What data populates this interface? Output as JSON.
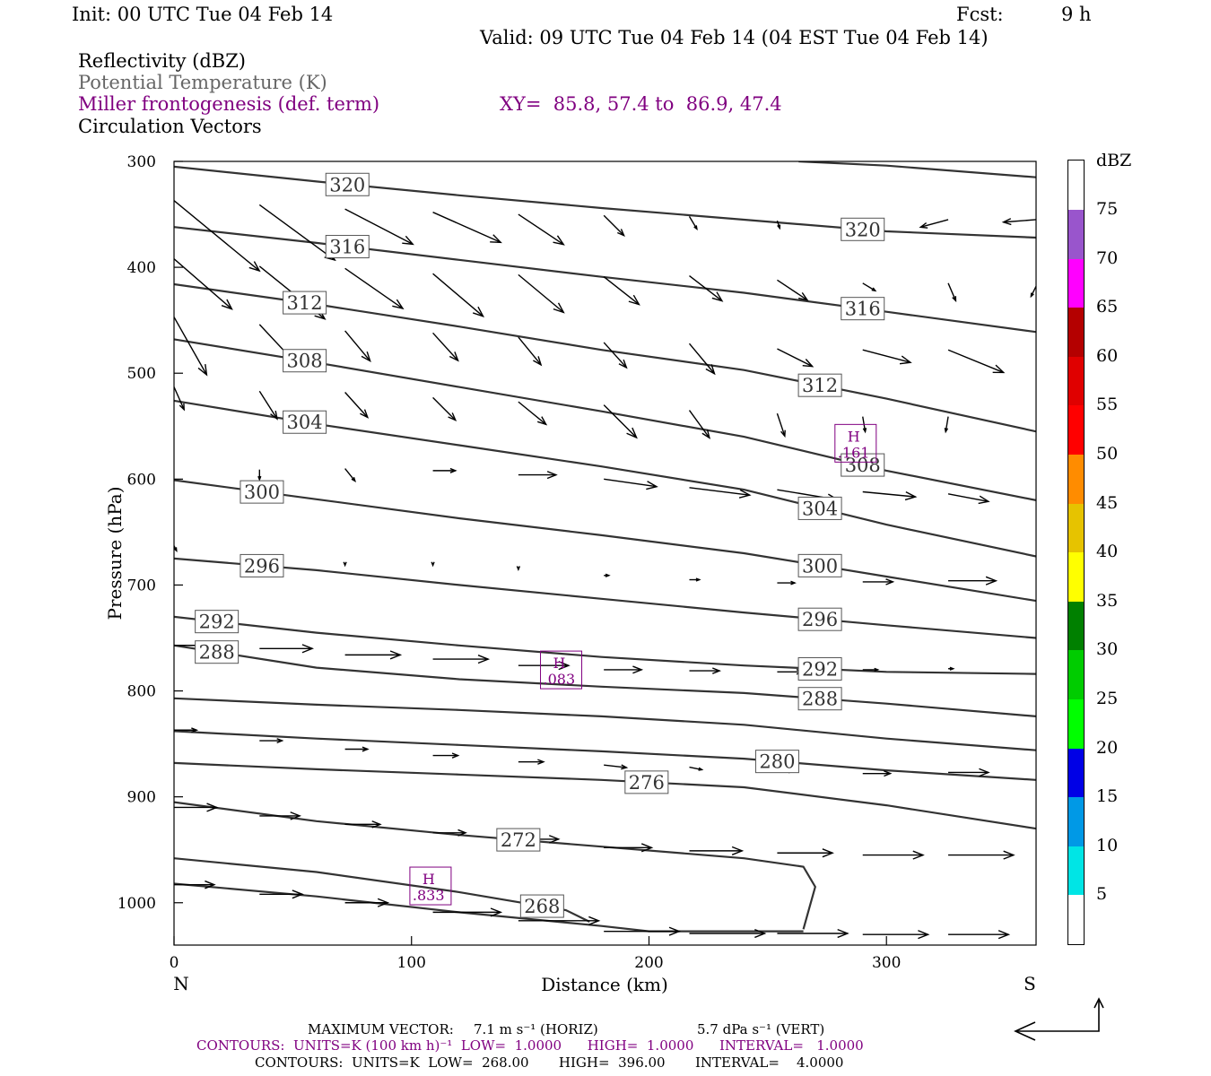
{
  "header": {
    "init": "Init: 00 UTC Tue 04 Feb 14",
    "fcst_label": "Fcst:",
    "fcst_value": "9 h",
    "valid": "Valid: 09 UTC Tue 04 Feb 14 (04 EST Tue 04 Feb 14)"
  },
  "legend": {
    "line1": "Reflectivity (dBZ)",
    "line2": "Potential Temperature (K)",
    "line3": "Miller frontogenesis (def. term)",
    "xy": "XY=  85.8, 57.4 to  86.9, 47.4",
    "line4": "Circulation Vectors"
  },
  "chart_data": {
    "type": "cross-section",
    "xlabel": "Distance (km)",
    "ylabel": "Pressure (hPa)",
    "xlim": [
      0,
      363
    ],
    "ylim_hpa": [
      300,
      1040
    ],
    "x_ticks": [
      0,
      100,
      200,
      300
    ],
    "y_ticks": [
      300,
      400,
      500,
      600,
      700,
      800,
      900,
      1000
    ],
    "x_end_labels": {
      "left": "N",
      "right": "S"
    },
    "theta_contours": [
      {
        "value": 320,
        "label_x": [
          73,
          290
        ],
        "pts": [
          [
            0,
            305
          ],
          [
            60,
            319
          ],
          [
            120,
            332
          ],
          [
            180,
            344
          ],
          [
            240,
            355
          ],
          [
            300,
            366
          ],
          [
            363,
            372
          ]
        ],
        "upper_pts": [
          [
            263,
            300
          ],
          [
            300,
            304
          ],
          [
            363,
            315
          ]
        ]
      },
      {
        "value": 316,
        "label_x": [
          73,
          290
        ],
        "pts": [
          [
            0,
            362
          ],
          [
            60,
            377
          ],
          [
            120,
            393
          ],
          [
            180,
            409
          ],
          [
            240,
            424
          ],
          [
            300,
            442
          ],
          [
            363,
            461
          ]
        ]
      },
      {
        "value": 312,
        "label_x": [
          55,
          272
        ],
        "pts": [
          [
            0,
            416
          ],
          [
            60,
            435
          ],
          [
            120,
            456
          ],
          [
            180,
            478
          ],
          [
            240,
            497
          ],
          [
            300,
            524
          ],
          [
            363,
            555
          ]
        ]
      },
      {
        "value": 308,
        "label_x": [
          55,
          290
        ],
        "pts": [
          [
            0,
            468
          ],
          [
            60,
            490
          ],
          [
            120,
            513
          ],
          [
            180,
            536
          ],
          [
            240,
            560
          ],
          [
            300,
            592
          ],
          [
            363,
            620
          ]
        ]
      },
      {
        "value": 304,
        "label_x": [
          55,
          272
        ],
        "pts": [
          [
            0,
            526
          ],
          [
            60,
            548
          ],
          [
            120,
            568
          ],
          [
            180,
            588
          ],
          [
            240,
            610
          ],
          [
            300,
            643
          ],
          [
            363,
            673
          ]
        ]
      },
      {
        "value": 300,
        "label_x": [
          37,
          272
        ],
        "pts": [
          [
            0,
            601
          ],
          [
            60,
            619
          ],
          [
            120,
            637
          ],
          [
            180,
            653
          ],
          [
            240,
            670
          ],
          [
            300,
            692
          ],
          [
            363,
            715
          ]
        ]
      },
      {
        "value": 296,
        "label_x": [
          37,
          272
        ],
        "pts": [
          [
            0,
            675
          ],
          [
            60,
            686
          ],
          [
            120,
            700
          ],
          [
            180,
            713
          ],
          [
            240,
            726
          ],
          [
            300,
            738
          ],
          [
            363,
            750
          ]
        ]
      },
      {
        "value": 292,
        "label_x": [
          18,
          272
        ],
        "pts": [
          [
            0,
            730
          ],
          [
            60,
            745
          ],
          [
            120,
            757
          ],
          [
            180,
            768
          ],
          [
            240,
            776
          ],
          [
            300,
            782
          ],
          [
            363,
            784
          ]
        ]
      },
      {
        "value": 288,
        "label_x": [
          18,
          272
        ],
        "pts": [
          [
            0,
            757
          ],
          [
            60,
            778
          ],
          [
            120,
            789
          ],
          [
            180,
            796
          ],
          [
            240,
            802
          ],
          [
            300,
            812
          ],
          [
            363,
            824
          ]
        ]
      },
      {
        "value": 284,
        "label_x": [],
        "pts": [
          [
            0,
            807
          ],
          [
            60,
            813
          ],
          [
            120,
            818
          ],
          [
            180,
            824
          ],
          [
            240,
            832
          ],
          [
            300,
            845
          ],
          [
            363,
            856
          ]
        ]
      },
      {
        "value": 280,
        "label_x": [
          254
        ],
        "pts": [
          [
            0,
            838
          ],
          [
            60,
            845
          ],
          [
            120,
            851
          ],
          [
            180,
            857
          ],
          [
            240,
            864
          ],
          [
            300,
            875
          ],
          [
            363,
            884
          ]
        ]
      },
      {
        "value": 276,
        "label_x": [
          199
        ],
        "pts": [
          [
            0,
            868
          ],
          [
            60,
            874
          ],
          [
            120,
            879
          ],
          [
            180,
            884
          ],
          [
            240,
            891
          ],
          [
            300,
            908
          ],
          [
            363,
            930
          ]
        ]
      },
      {
        "value": 272,
        "label_x": [
          145
        ],
        "pts": [
          [
            0,
            905
          ],
          [
            60,
            923
          ],
          [
            120,
            936
          ],
          [
            180,
            947
          ],
          [
            240,
            958
          ],
          [
            265,
            966
          ],
          [
            270,
            985
          ],
          [
            265,
            1025
          ]
        ]
      },
      {
        "value": 268,
        "label_x": [
          155
        ],
        "pts": [
          [
            0,
            958
          ],
          [
            60,
            971
          ],
          [
            120,
            990
          ],
          [
            165,
            1007
          ],
          [
            175,
            1018
          ]
        ]
      },
      {
        "value": 264,
        "label_x": [],
        "pts": [
          [
            0,
            982
          ],
          [
            60,
            994
          ],
          [
            120,
            1009
          ],
          [
            180,
            1022
          ],
          [
            200,
            1027
          ],
          [
            265,
            1027
          ]
        ]
      }
    ],
    "contour_label_values": [
      "320",
      "320",
      "316",
      "316",
      "312",
      "312",
      "308",
      "308",
      "304",
      "304",
      "300",
      "300",
      "296",
      "296",
      "292",
      "292",
      "288",
      "288",
      "280",
      "276",
      "272",
      "268"
    ],
    "frontogenesis_maxima": [
      {
        "label": "H",
        "value": ".161",
        "x": 287,
        "p": 567
      },
      {
        "label": "H",
        "value": ".083",
        "x": 163,
        "p": 781
      },
      {
        "label": "H",
        "value": ".833",
        "x": 108,
        "p": 985
      }
    ],
    "circulation_vectors": [
      {
        "x": 0,
        "p": 337,
        "u": 34,
        "w": 28
      },
      {
        "x": 36,
        "p": 341,
        "u": 30,
        "w": 22
      },
      {
        "x": 72,
        "p": 345,
        "u": 27,
        "w": 14
      },
      {
        "x": 109,
        "p": 348,
        "u": 27,
        "w": 12
      },
      {
        "x": 145,
        "p": 350,
        "u": 18,
        "w": 12
      },
      {
        "x": 181,
        "p": 351,
        "u": 8,
        "w": 8
      },
      {
        "x": 217,
        "p": 352,
        "u": 3,
        "w": 5
      },
      {
        "x": 254,
        "p": 356,
        "u": 1,
        "w": 3
      },
      {
        "x": 290,
        "p": 355,
        "u": -6,
        "w": 3
      },
      {
        "x": 326,
        "p": 355,
        "u": -11,
        "w": 3
      },
      {
        "x": 363,
        "p": 355,
        "u": -13,
        "w": 1
      },
      {
        "x": 0,
        "p": 392,
        "u": 23,
        "w": 20
      },
      {
        "x": 36,
        "p": 399,
        "u": 26,
        "w": 21
      },
      {
        "x": 72,
        "p": 401,
        "u": 23,
        "w": 16
      },
      {
        "x": 109,
        "p": 406,
        "u": 20,
        "w": 17
      },
      {
        "x": 145,
        "p": 407,
        "u": 18,
        "w": 15
      },
      {
        "x": 181,
        "p": 409,
        "u": 14,
        "w": 11
      },
      {
        "x": 217,
        "p": 408,
        "u": 13,
        "w": 10
      },
      {
        "x": 254,
        "p": 412,
        "u": 12,
        "w": 8
      },
      {
        "x": 290,
        "p": 415,
        "u": 5,
        "w": 3
      },
      {
        "x": 326,
        "p": 415,
        "u": 3,
        "w": 7
      },
      {
        "x": 363,
        "p": 418,
        "u": -2,
        "w": 4
      },
      {
        "x": 0,
        "p": 447,
        "u": 13,
        "w": 23
      },
      {
        "x": 36,
        "p": 454,
        "u": 14,
        "w": 15
      },
      {
        "x": 72,
        "p": 460,
        "u": 10,
        "w": 12
      },
      {
        "x": 109,
        "p": 462,
        "u": 10,
        "w": 11
      },
      {
        "x": 145,
        "p": 466,
        "u": 9,
        "w": 11
      },
      {
        "x": 181,
        "p": 471,
        "u": 9,
        "w": 10
      },
      {
        "x": 217,
        "p": 472,
        "u": 10,
        "w": 12
      },
      {
        "x": 254,
        "p": 477,
        "u": 14,
        "w": 7
      },
      {
        "x": 290,
        "p": 478,
        "u": 19,
        "w": 5
      },
      {
        "x": 326,
        "p": 478,
        "u": 22,
        "w": 9
      },
      {
        "x": 363,
        "p": 480,
        "u": 23,
        "w": 5
      },
      {
        "x": 0,
        "p": 513,
        "u": 4,
        "w": 9
      },
      {
        "x": 36,
        "p": 517,
        "u": 7,
        "w": 11
      },
      {
        "x": 72,
        "p": 518,
        "u": 9,
        "w": 10
      },
      {
        "x": 109,
        "p": 523,
        "u": 9,
        "w": 9
      },
      {
        "x": 145,
        "p": 527,
        "u": 11,
        "w": 9
      },
      {
        "x": 181,
        "p": 530,
        "u": 13,
        "w": 13
      },
      {
        "x": 217,
        "p": 535,
        "u": 8,
        "w": 11
      },
      {
        "x": 254,
        "p": 538,
        "u": 3,
        "w": 9
      },
      {
        "x": 290,
        "p": 541,
        "u": 1,
        "w": 6
      },
      {
        "x": 326,
        "p": 541,
        "u": -1,
        "w": 6
      },
      {
        "x": 36,
        "p": 591,
        "u": 0,
        "w": 4
      },
      {
        "x": 72,
        "p": 590,
        "u": 4,
        "w": 5
      },
      {
        "x": 109,
        "p": 592,
        "u": 9,
        "w": 0
      },
      {
        "x": 145,
        "p": 596,
        "u": 15,
        "w": 0
      },
      {
        "x": 181,
        "p": 600,
        "u": 21,
        "w": 3
      },
      {
        "x": 217,
        "p": 608,
        "u": 24,
        "w": 3
      },
      {
        "x": 254,
        "p": 610,
        "u": 24,
        "w": 4
      },
      {
        "x": 290,
        "p": 612,
        "u": 21,
        "w": 2
      },
      {
        "x": 326,
        "p": 614,
        "u": 16,
        "w": 3
      },
      {
        "x": 0,
        "p": 663,
        "u": 1,
        "w": 2
      },
      {
        "x": 36,
        "p": 671,
        "u": 0,
        "w": 2
      },
      {
        "x": 72,
        "p": 679,
        "u": 0,
        "w": 1
      },
      {
        "x": 109,
        "p": 679,
        "u": 0,
        "w": 1
      },
      {
        "x": 145,
        "p": 683,
        "u": 0,
        "w": 1
      },
      {
        "x": 181,
        "p": 691,
        "u": 2,
        "w": 0
      },
      {
        "x": 217,
        "p": 695,
        "u": 4,
        "w": 0
      },
      {
        "x": 254,
        "p": 698,
        "u": 7,
        "w": 0
      },
      {
        "x": 290,
        "p": 697,
        "u": 12,
        "w": 0
      },
      {
        "x": 326,
        "p": 696,
        "u": 19,
        "w": 0
      },
      {
        "x": 0,
        "p": 757,
        "u": 18,
        "w": 0
      },
      {
        "x": 36,
        "p": 760,
        "u": 21,
        "w": 0
      },
      {
        "x": 72,
        "p": 766,
        "u": 22,
        "w": 0
      },
      {
        "x": 109,
        "p": 770,
        "u": 22,
        "w": 0
      },
      {
        "x": 145,
        "p": 776,
        "u": 20,
        "w": 0
      },
      {
        "x": 181,
        "p": 780,
        "u": 15,
        "w": 0
      },
      {
        "x": 217,
        "p": 781,
        "u": 12,
        "w": 0
      },
      {
        "x": 254,
        "p": 782,
        "u": 10,
        "w": 0
      },
      {
        "x": 290,
        "p": 780,
        "u": 6,
        "w": 0
      },
      {
        "x": 326,
        "p": 779,
        "u": 2,
        "w": 0
      },
      {
        "x": 0,
        "p": 837,
        "u": 9,
        "w": 0
      },
      {
        "x": 36,
        "p": 847,
        "u": 9,
        "w": 0
      },
      {
        "x": 72,
        "p": 855,
        "u": 9,
        "w": 0
      },
      {
        "x": 109,
        "p": 861,
        "u": 10,
        "w": 0
      },
      {
        "x": 145,
        "p": 867,
        "u": 10,
        "w": 0
      },
      {
        "x": 181,
        "p": 870,
        "u": 9,
        "w": 1
      },
      {
        "x": 217,
        "p": 872,
        "u": 5,
        "w": 1
      },
      {
        "x": 254,
        "p": 874,
        "u": 6,
        "w": 1
      },
      {
        "x": 290,
        "p": 878,
        "u": 11,
        "w": 0
      },
      {
        "x": 326,
        "p": 877,
        "u": 16,
        "w": 0
      },
      {
        "x": 0,
        "p": 910,
        "u": 17,
        "w": 0
      },
      {
        "x": 36,
        "p": 918,
        "u": 16,
        "w": 0
      },
      {
        "x": 72,
        "p": 926,
        "u": 14,
        "w": 0
      },
      {
        "x": 109,
        "p": 934,
        "u": 13,
        "w": 0
      },
      {
        "x": 145,
        "p": 940,
        "u": 16,
        "w": 0
      },
      {
        "x": 181,
        "p": 948,
        "u": 19,
        "w": 0
      },
      {
        "x": 217,
        "p": 951,
        "u": 21,
        "w": 0
      },
      {
        "x": 254,
        "p": 953,
        "u": 22,
        "w": 0
      },
      {
        "x": 290,
        "p": 955,
        "u": 24,
        "w": 0
      },
      {
        "x": 326,
        "p": 955,
        "u": 26,
        "w": 0
      },
      {
        "x": 0,
        "p": 983,
        "u": 16,
        "w": 0
      },
      {
        "x": 36,
        "p": 992,
        "u": 17,
        "w": 0
      },
      {
        "x": 72,
        "p": 1000,
        "u": 17,
        "w": 0
      },
      {
        "x": 109,
        "p": 1009,
        "u": 27,
        "w": 0
      },
      {
        "x": 145,
        "p": 1017,
        "u": 32,
        "w": 0
      },
      {
        "x": 181,
        "p": 1027,
        "u": 30,
        "w": 0
      },
      {
        "x": 217,
        "p": 1029,
        "u": 30,
        "w": 0
      },
      {
        "x": 254,
        "p": 1029,
        "u": 28,
        "w": 0
      },
      {
        "x": 290,
        "p": 1030,
        "u": 26,
        "w": 0
      },
      {
        "x": 326,
        "p": 1030,
        "u": 24,
        "w": 0
      }
    ],
    "colorbar": {
      "unit": "dBZ",
      "levels": [
        "5",
        "10",
        "15",
        "20",
        "25",
        "30",
        "35",
        "40",
        "45",
        "50",
        "55",
        "60",
        "65",
        "70",
        "75"
      ],
      "colors": [
        "#ffffff",
        "#00e5e5",
        "#0099e6",
        "#0000e6",
        "#00ff00",
        "#00cc00",
        "#008000",
        "#ffff00",
        "#e6c300",
        "#ff8c00",
        "#ff0000",
        "#e00000",
        "#b40000",
        "#ff00ff",
        "#9955cc",
        "#ffffff"
      ]
    }
  },
  "footer": {
    "max_vector_label": "MAXIMUM VECTOR:",
    "max_vector_horiz": "7.1 m s⁻¹ (HORIZ)",
    "max_vector_vert": "5.7 dPa s⁻¹ (VERT)",
    "contours_purple": "CONTOURS:  UNITS=K (100 km h)⁻¹  LOW=  1.0000      HIGH=  1.0000      INTERVAL=   1.0000",
    "contours_black": "CONTOURS:  UNITS=K  LOW=  268.00       HIGH=  396.00       INTERVAL=    4.0000"
  },
  "colors": {
    "contour": "#333333",
    "frontogenesis": "#800080",
    "vector": "#000000"
  }
}
